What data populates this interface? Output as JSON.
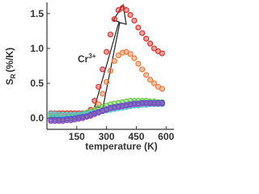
{
  "chart_data": {
    "type": "scatter",
    "x": [
      20,
      40,
      60,
      80,
      100,
      120,
      140,
      160,
      180,
      200,
      220,
      240,
      260,
      280,
      300,
      320,
      340,
      360,
      380,
      400,
      420,
      440,
      460,
      480,
      500,
      520,
      540,
      560,
      580
    ],
    "series": [
      {
        "color": "#e0302a",
        "values": [
          0.07,
          0.07,
          0.07,
          0.07,
          0.07,
          0.07,
          0.07,
          0.07,
          0.07,
          0.07,
          0.12,
          0.25,
          0.45,
          0.7,
          0.95,
          1.2,
          1.42,
          1.55,
          1.58,
          1.55,
          1.48,
          1.4,
          1.3,
          1.22,
          1.14,
          1.07,
          1.0,
          0.96,
          0.93
        ]
      },
      {
        "color": "#f07a3a",
        "values": [
          0.03,
          0.03,
          0.03,
          0.03,
          0.03,
          0.03,
          0.03,
          0.03,
          0.03,
          0.03,
          0.03,
          0.1,
          0.2,
          0.35,
          0.52,
          0.68,
          0.82,
          0.9,
          0.94,
          0.95,
          0.92,
          0.86,
          0.78,
          0.7,
          0.62,
          0.55,
          0.5,
          0.45,
          0.42
        ]
      },
      {
        "color": "#6cc84a",
        "values": [
          0.02,
          0.01,
          0.0,
          0.0,
          0.0,
          0.01,
          0.02,
          0.04,
          0.06,
          0.08,
          0.1,
          0.12,
          0.14,
          0.16,
          0.18,
          0.2,
          0.21,
          0.22,
          0.23,
          0.24,
          0.25,
          0.25,
          0.25,
          0.25,
          0.25,
          0.24,
          0.24,
          0.23,
          0.23
        ]
      },
      {
        "color": "#4ec8d0",
        "values": [
          0.06,
          0.06,
          0.05,
          0.05,
          0.05,
          0.05,
          0.05,
          0.05,
          0.06,
          0.06,
          0.07,
          0.08,
          0.09,
          0.1,
          0.11,
          0.12,
          0.13,
          0.14,
          0.15,
          0.16,
          0.17,
          0.18,
          0.18,
          0.19,
          0.19,
          0.2,
          0.2,
          0.2,
          0.2
        ]
      },
      {
        "color": "#3a5ad8",
        "values": [
          -0.02,
          -0.02,
          -0.02,
          -0.02,
          -0.01,
          -0.01,
          0.0,
          0.01,
          0.02,
          0.03,
          0.05,
          0.07,
          0.09,
          0.11,
          0.13,
          0.15,
          0.16,
          0.17,
          0.18,
          0.19,
          0.2,
          0.21,
          0.21,
          0.22,
          0.22,
          0.22,
          0.22,
          0.22,
          0.22
        ]
      },
      {
        "color": "#8a4ab8",
        "values": [
          -0.04,
          -0.04,
          -0.04,
          -0.04,
          -0.03,
          -0.03,
          -0.02,
          -0.01,
          0.0,
          0.02,
          0.04,
          0.06,
          0.08,
          0.1,
          0.12,
          0.14,
          0.15,
          0.16,
          0.17,
          0.18,
          0.19,
          0.2,
          0.2,
          0.21,
          0.21,
          0.21,
          0.21,
          0.21,
          0.21
        ]
      }
    ],
    "xlim": [
      0,
      640
    ],
    "xticks": [
      150,
      300,
      450,
      600
    ],
    "ylim": [
      -0.16,
      1.66
    ],
    "yticks": [
      {
        "value": 0,
        "label": "0.0"
      },
      0.5,
      {
        "value": 1,
        "label": "1.0"
      },
      1.5
    ],
    "x_label": "temperature (K)",
    "y_label": {
      "symbol": "S",
      "subscript": "R",
      "unit": "(%/K)"
    },
    "annotation": {
      "text": "Cr",
      "superscript": "3+"
    }
  }
}
